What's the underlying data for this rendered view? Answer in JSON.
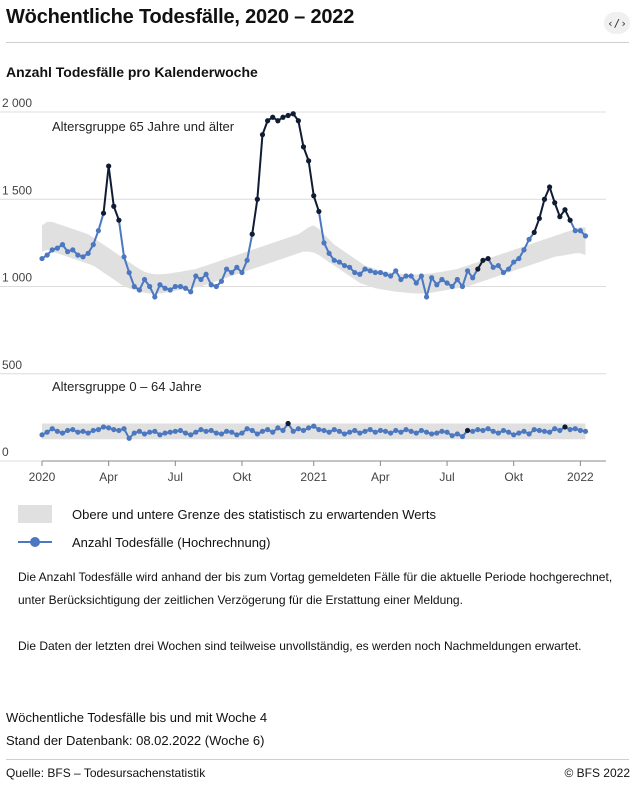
{
  "header": {
    "title": "Wöchentliche Todesfälle, 2020 – 2022",
    "embed_label": "‹/›"
  },
  "subtitle": "Anzahl Todesfälle pro Kalenderwoche",
  "legend": {
    "band_label": "Obere und untere Grenze des statistisch zu erwartenden Werts",
    "line_label": "Anzahl Todesfälle (Hochrechnung)"
  },
  "notes": {
    "p1": "Die Anzahl Todesfälle wird anhand der bis zum Vortag gemeldeten Fälle für die aktuelle Periode hochgerechnet, unter Berücksichtigung der zeitlichen Verzögerung für die Erstattung einer Meldung.",
    "p2": "Die Daten der letzten drei Wochen sind teilweise unvollständig, es werden noch Nachmeldungen erwartet."
  },
  "info": {
    "line1": "Wöchentliche Todesfälle bis und mit Woche 4",
    "line2": "Stand der Datenbank: 08.02.2022 (Woche 6)"
  },
  "footer": {
    "source": "Quelle: BFS – Todesursachenstatistik",
    "copyright": "© BFS 2022"
  },
  "colors": {
    "normal": "#4b78c0",
    "excess": "#0f1c33",
    "band": "#e0e0e0",
    "grid": "#dcdcdc"
  },
  "chart_data": {
    "type": "line",
    "title": "Anzahl Todesfälle pro Kalenderwoche",
    "xlabel": "",
    "ylabel": "",
    "ylim": [
      0,
      2000
    ],
    "y_ticks": [
      0,
      500,
      1000,
      1500,
      2000
    ],
    "y_tick_labels": [
      "0",
      "500",
      "1 000",
      "1 500",
      "2 000"
    ],
    "x_range_weeks": [
      0,
      110
    ],
    "x_ticks": [
      {
        "week": 0,
        "label": "2020"
      },
      {
        "week": 13,
        "label": "Apr"
      },
      {
        "week": 26,
        "label": "Jul"
      },
      {
        "week": 39,
        "label": "Okt"
      },
      {
        "week": 53,
        "label": "2021"
      },
      {
        "week": 66,
        "label": "Apr"
      },
      {
        "week": 79,
        "label": "Jul"
      },
      {
        "week": 92,
        "label": "Okt"
      },
      {
        "week": 105,
        "label": "2022"
      }
    ],
    "series": [
      {
        "name": "Altersgruppe 65 Jahre und älter",
        "start_week": 0,
        "values": [
          1160,
          1180,
          1210,
          1220,
          1240,
          1200,
          1210,
          1180,
          1170,
          1190,
          1240,
          1320,
          1420,
          1690,
          1460,
          1380,
          1170,
          1080,
          1000,
          980,
          1040,
          1000,
          940,
          1010,
          990,
          980,
          1000,
          1000,
          990,
          970,
          1060,
          1040,
          1070,
          1010,
          1000,
          1030,
          1100,
          1080,
          1110,
          1080,
          1150,
          1300,
          1500,
          1870,
          1950,
          1970,
          1950,
          1970,
          1980,
          1990,
          1950,
          1800,
          1720,
          1520,
          1430,
          1250,
          1190,
          1150,
          1140,
          1120,
          1110,
          1080,
          1070,
          1100,
          1090,
          1080,
          1080,
          1070,
          1060,
          1090,
          1040,
          1060,
          1060,
          1020,
          1060,
          940,
          1050,
          1010,
          1040,
          1020,
          1000,
          1040,
          1000,
          1090,
          1050,
          1100,
          1150,
          1160,
          1110,
          1120,
          1080,
          1100,
          1140,
          1160,
          1210,
          1270,
          1310,
          1390,
          1500,
          1570,
          1480,
          1400,
          1440,
          1380,
          1320,
          1320,
          1290
        ],
        "excess": [
          0,
          0,
          0,
          0,
          0,
          0,
          0,
          0,
          0,
          0,
          0,
          0,
          1,
          1,
          1,
          1,
          0,
          0,
          0,
          0,
          0,
          0,
          0,
          0,
          0,
          0,
          0,
          0,
          0,
          0,
          0,
          0,
          0,
          0,
          0,
          0,
          0,
          0,
          0,
          0,
          0,
          1,
          1,
          1,
          1,
          1,
          1,
          1,
          1,
          1,
          1,
          1,
          1,
          1,
          1,
          0,
          0,
          0,
          0,
          0,
          0,
          0,
          0,
          0,
          0,
          0,
          0,
          0,
          0,
          0,
          0,
          0,
          0,
          0,
          0,
          0,
          0,
          0,
          0,
          0,
          0,
          0,
          0,
          0,
          0,
          1,
          1,
          1,
          0,
          0,
          0,
          0,
          0,
          0,
          0,
          0,
          1,
          1,
          1,
          1,
          1,
          1,
          1,
          1,
          0,
          0,
          0
        ],
        "band_lower": [
          1200,
          1210,
          1200,
          1190,
          1180,
          1170,
          1160,
          1150,
          1140,
          1130,
          1120,
          1100,
          1080,
          1060,
          1040,
          1020,
          1000,
          990,
          980,
          970,
          965,
          960,
          960,
          960,
          965,
          970,
          975,
          980,
          985,
          990,
          995,
          1000,
          1010,
          1020,
          1030,
          1040,
          1050,
          1060,
          1070,
          1080,
          1090,
          1100,
          1110,
          1120,
          1130,
          1140,
          1150,
          1160,
          1170,
          1180,
          1190,
          1200,
          1200,
          1195,
          1180,
          1160,
          1140,
          1120,
          1100,
          1080,
          1060,
          1040,
          1020,
          1010,
          1000,
          990,
          985,
          980,
          975,
          970,
          968,
          965,
          962,
          960,
          960,
          962,
          965,
          970,
          975,
          980,
          985,
          990,
          995,
          1000,
          1010,
          1020,
          1030,
          1040,
          1050,
          1060,
          1070,
          1080,
          1090,
          1100,
          1110,
          1120,
          1130,
          1140,
          1150,
          1160,
          1170,
          1175,
          1180,
          1185,
          1190,
          1190,
          1180
        ],
        "band_upper": [
          1350,
          1370,
          1370,
          1360,
          1350,
          1340,
          1330,
          1320,
          1310,
          1300,
          1280,
          1260,
          1240,
          1220,
          1200,
          1180,
          1160,
          1140,
          1120,
          1100,
          1085,
          1075,
          1070,
          1070,
          1072,
          1075,
          1080,
          1085,
          1090,
          1095,
          1100,
          1110,
          1120,
          1130,
          1140,
          1150,
          1160,
          1170,
          1180,
          1190,
          1200,
          1210,
          1220,
          1230,
          1240,
          1250,
          1260,
          1270,
          1280,
          1290,
          1300,
          1320,
          1340,
          1350,
          1330,
          1300,
          1270,
          1240,
          1220,
          1200,
          1180,
          1160,
          1140,
          1120,
          1110,
          1100,
          1090,
          1085,
          1080,
          1075,
          1072,
          1070,
          1068,
          1068,
          1070,
          1072,
          1075,
          1080,
          1085,
          1090,
          1095,
          1100,
          1110,
          1120,
          1130,
          1140,
          1150,
          1160,
          1170,
          1180,
          1190,
          1200,
          1210,
          1220,
          1230,
          1240,
          1250,
          1260,
          1270,
          1280,
          1290,
          1300,
          1310,
          1320,
          1330,
          1340,
          1340
        ]
      },
      {
        "name": "Altersgruppe 0 – 64 Jahre",
        "start_week": 0,
        "values": [
          150,
          165,
          185,
          170,
          160,
          175,
          180,
          165,
          170,
          160,
          175,
          180,
          195,
          190,
          180,
          175,
          185,
          130,
          160,
          170,
          155,
          165,
          170,
          150,
          160,
          165,
          170,
          175,
          160,
          150,
          165,
          180,
          170,
          175,
          160,
          155,
          170,
          165,
          150,
          160,
          185,
          175,
          155,
          170,
          180,
          165,
          190,
          175,
          215,
          170,
          185,
          175,
          190,
          200,
          180,
          175,
          165,
          180,
          170,
          155,
          165,
          175,
          160,
          170,
          180,
          165,
          175,
          170,
          160,
          175,
          165,
          180,
          170,
          160,
          175,
          165,
          155,
          160,
          170,
          165,
          145,
          155,
          140,
          175,
          170,
          180,
          175,
          185,
          170,
          160,
          175,
          165,
          150,
          160,
          170,
          155,
          180,
          175,
          170,
          165,
          185,
          175,
          195,
          180,
          185,
          175,
          170
        ],
        "excess": [
          0,
          0,
          0,
          0,
          0,
          0,
          0,
          0,
          0,
          0,
          0,
          0,
          0,
          0,
          0,
          0,
          0,
          0,
          0,
          0,
          0,
          0,
          0,
          0,
          0,
          0,
          0,
          0,
          0,
          0,
          0,
          0,
          0,
          0,
          0,
          0,
          0,
          0,
          0,
          0,
          0,
          0,
          0,
          0,
          0,
          0,
          0,
          0,
          1,
          0,
          0,
          0,
          0,
          0,
          0,
          0,
          0,
          0,
          0,
          0,
          0,
          0,
          0,
          0,
          0,
          0,
          0,
          0,
          0,
          0,
          0,
          0,
          0,
          0,
          0,
          0,
          0,
          0,
          0,
          0,
          0,
          0,
          0,
          1,
          0,
          0,
          0,
          0,
          0,
          0,
          0,
          0,
          0,
          0,
          0,
          0,
          0,
          0,
          0,
          0,
          0,
          0,
          1,
          0,
          0,
          0,
          0
        ],
        "band_lower": 125,
        "band_upper": 215
      }
    ],
    "annotations": [
      "Altersgruppe 65 Jahre und älter",
      "Altersgruppe 0 – 64 Jahre"
    ]
  }
}
